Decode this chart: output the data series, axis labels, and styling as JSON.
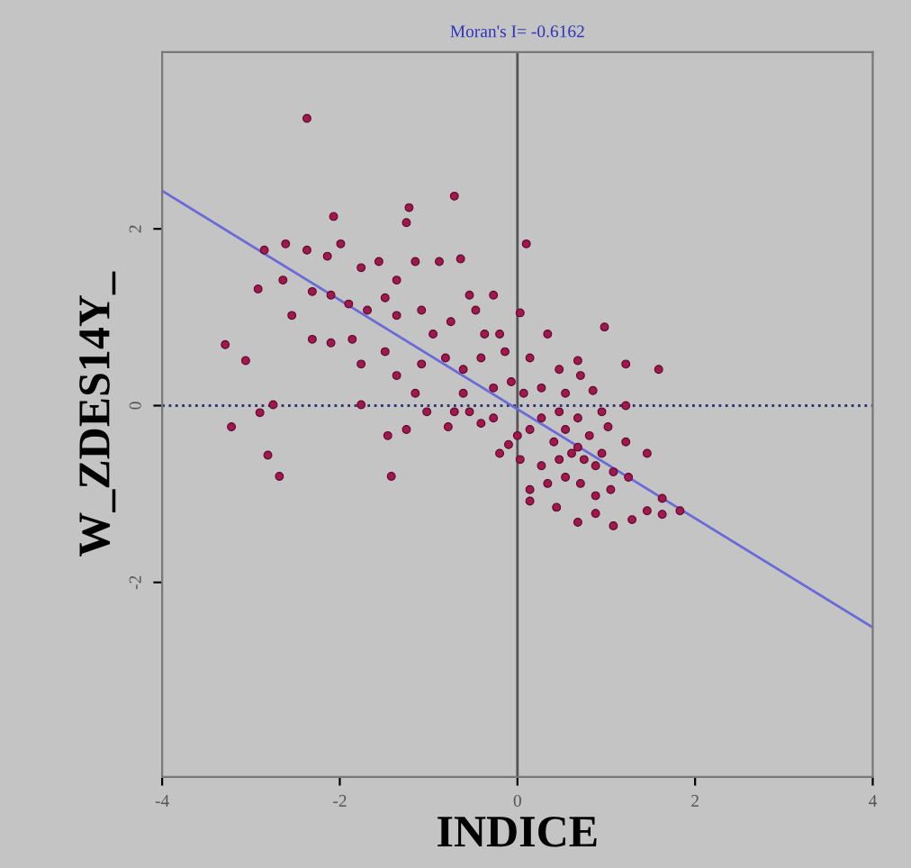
{
  "chart_data": {
    "type": "scatter",
    "title": "Moran's I= -0.6162",
    "xlabel": "INDICE",
    "ylabel": "W_ZDES14Y_",
    "xlim": [
      -4,
      4
    ],
    "ylim": [
      -4.2,
      4.0
    ],
    "xticks": [
      -4,
      -2,
      0,
      2,
      4
    ],
    "yticks": [
      -2,
      0,
      2
    ],
    "grid": false,
    "legend": false,
    "marker": "circle",
    "ref_lines": [
      {
        "axis": "x",
        "value": 0,
        "color": "#555555",
        "line_style": "solid"
      },
      {
        "axis": "y",
        "value": 0,
        "color": "#333377",
        "line_style": "dotted"
      }
    ],
    "series": [
      {
        "color": "#a3174f",
        "x": [
          -2.37,
          -0.71,
          0.1,
          -2.07,
          -1.22,
          -1.25,
          -2.85,
          -2.61,
          -2.37,
          -1.99,
          -2.14,
          -2.92,
          -2.64,
          -2.31,
          -2.1,
          -1.9,
          -1.76,
          -1.56,
          -1.36,
          -1.15,
          -0.88,
          -0.64,
          -0.54,
          -0.27,
          -2.54,
          -2.31,
          -2.1,
          -1.86,
          -1.69,
          -1.49,
          -1.36,
          -1.08,
          -0.95,
          -0.75,
          -0.47,
          -0.37,
          -0.2,
          0.03,
          0.98,
          1.22,
          1.59,
          -3.29,
          -3.06,
          -1.76,
          -1.49,
          -1.36,
          -1.08,
          -0.81,
          -0.61,
          -0.41,
          -0.14,
          0.14,
          0.34,
          0.47,
          0.71,
          0.68,
          -1.76,
          -1.02,
          -0.71,
          -0.61,
          -0.27,
          -0.07,
          -0.27,
          0.07,
          0.27,
          0.54,
          0.85,
          1.22,
          -2.75,
          -2.9,
          -3.22,
          -2.81,
          -2.68,
          -1.46,
          -1.25,
          -1.42,
          -0.78,
          -0.41,
          -0.1,
          0.03,
          0.14,
          0.27,
          0.41,
          0.54,
          0.68,
          0.81,
          1.02,
          1.22,
          1.46,
          0.27,
          0.47,
          0.61,
          0.75,
          0.88,
          1.08,
          0.14,
          0.34,
          0.54,
          0.71,
          0.88,
          1.05,
          1.25,
          0.14,
          0.44,
          0.68,
          0.88,
          1.08,
          1.29,
          1.46,
          1.63,
          1.63,
          1.83,
          0.68,
          0.95,
          0.0,
          -0.2,
          -0.54,
          -1.15,
          0.47,
          0.95
        ],
        "values": [
          3.25,
          2.37,
          1.83,
          2.14,
          2.24,
          2.07,
          1.76,
          1.83,
          1.76,
          1.83,
          1.69,
          1.32,
          1.42,
          1.29,
          1.25,
          1.15,
          1.56,
          1.63,
          1.42,
          1.63,
          1.63,
          1.66,
          1.25,
          1.25,
          1.02,
          0.75,
          0.71,
          0.75,
          1.08,
          1.22,
          1.02,
          1.08,
          0.81,
          0.95,
          1.08,
          0.81,
          0.81,
          1.05,
          0.89,
          0.47,
          0.41,
          0.69,
          0.51,
          0.47,
          0.61,
          0.34,
          0.47,
          0.54,
          0.41,
          0.54,
          0.61,
          0.54,
          0.81,
          0.41,
          0.34,
          0.51,
          0.01,
          -0.07,
          -0.07,
          0.14,
          0.2,
          0.27,
          -0.14,
          0.14,
          0.2,
          0.14,
          0.17,
          0.0,
          0.01,
          -0.08,
          -0.24,
          -0.56,
          -0.8,
          -0.34,
          -0.27,
          -0.8,
          -0.24,
          -0.2,
          -0.44,
          -0.61,
          -0.27,
          -0.14,
          -0.41,
          -0.27,
          -0.14,
          -0.34,
          -0.24,
          -0.41,
          -0.54,
          -0.68,
          -0.61,
          -0.54,
          -0.61,
          -0.68,
          -0.75,
          -0.95,
          -0.88,
          -0.81,
          -0.88,
          -1.02,
          -0.95,
          -0.81,
          -1.08,
          -1.15,
          -1.32,
          -1.22,
          -1.36,
          -1.29,
          -1.19,
          -1.05,
          -1.23,
          -1.19,
          -0.47,
          -0.54,
          -0.34,
          -0.54,
          -0.07,
          0.14,
          -0.07,
          -0.07
        ]
      },
      {
        "type": "line",
        "color": "#6a6ad8",
        "x": [
          -4,
          4
        ],
        "values": [
          2.43,
          -2.51
        ],
        "marker": "none",
        "line_style": "solid"
      }
    ]
  }
}
